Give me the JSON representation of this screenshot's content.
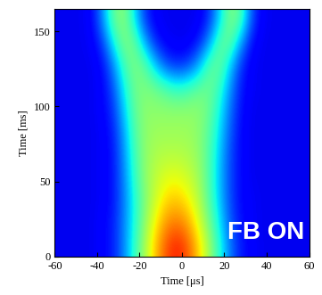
{
  "chart_data": {
    "type": "heatmap",
    "xlabel": "Time [μs]",
    "ylabel": "Time [ms]",
    "annotation": "FB ON",
    "x": [
      -57.5,
      -52.5,
      -47.5,
      -42.5,
      -37.5,
      -32.5,
      -27.5,
      -22.5,
      -17.5,
      -12.5,
      -7.5,
      -2.5,
      2.5,
      7.5,
      12.5,
      17.5,
      22.5,
      27.5,
      32.5,
      37.5,
      42.5,
      47.5,
      52.5,
      57.5
    ],
    "y": [
      7.5,
      22.5,
      37.5,
      52.5,
      67.5,
      82.5,
      97.5,
      112.5,
      127.5,
      142.5,
      157.5
    ],
    "cells": [
      [
        0.1,
        0.1,
        0.1,
        0.1,
        0.12,
        0.15,
        0.25,
        0.4,
        0.55,
        0.7,
        0.82,
        0.88,
        0.82,
        0.7,
        0.55,
        0.4,
        0.25,
        0.15,
        0.12,
        0.1,
        0.1,
        0.1,
        0.1,
        0.1
      ],
      [
        0.1,
        0.1,
        0.1,
        0.1,
        0.12,
        0.15,
        0.25,
        0.38,
        0.52,
        0.65,
        0.75,
        0.78,
        0.74,
        0.63,
        0.5,
        0.36,
        0.22,
        0.14,
        0.11,
        0.1,
        0.1,
        0.1,
        0.1,
        0.1
      ],
      [
        0.1,
        0.1,
        0.1,
        0.1,
        0.11,
        0.14,
        0.24,
        0.38,
        0.5,
        0.6,
        0.68,
        0.7,
        0.66,
        0.58,
        0.46,
        0.33,
        0.2,
        0.13,
        0.11,
        0.1,
        0.1,
        0.1,
        0.1,
        0.1
      ],
      [
        0.1,
        0.1,
        0.1,
        0.1,
        0.11,
        0.14,
        0.25,
        0.4,
        0.52,
        0.58,
        0.62,
        0.63,
        0.6,
        0.55,
        0.45,
        0.32,
        0.2,
        0.13,
        0.1,
        0.1,
        0.1,
        0.1,
        0.1,
        0.1
      ],
      [
        0.1,
        0.1,
        0.1,
        0.1,
        0.11,
        0.14,
        0.26,
        0.42,
        0.52,
        0.56,
        0.57,
        0.57,
        0.56,
        0.53,
        0.45,
        0.33,
        0.2,
        0.13,
        0.1,
        0.1,
        0.1,
        0.1,
        0.1,
        0.1
      ],
      [
        0.1,
        0.1,
        0.1,
        0.1,
        0.11,
        0.15,
        0.28,
        0.44,
        0.52,
        0.54,
        0.54,
        0.54,
        0.54,
        0.52,
        0.46,
        0.35,
        0.22,
        0.13,
        0.1,
        0.1,
        0.1,
        0.1,
        0.1,
        0.1
      ],
      [
        0.1,
        0.1,
        0.1,
        0.1,
        0.12,
        0.17,
        0.32,
        0.46,
        0.52,
        0.52,
        0.52,
        0.52,
        0.52,
        0.52,
        0.48,
        0.38,
        0.24,
        0.14,
        0.1,
        0.1,
        0.1,
        0.1,
        0.1,
        0.1
      ],
      [
        0.1,
        0.1,
        0.1,
        0.1,
        0.12,
        0.2,
        0.36,
        0.48,
        0.5,
        0.48,
        0.44,
        0.4,
        0.42,
        0.46,
        0.48,
        0.42,
        0.28,
        0.15,
        0.11,
        0.1,
        0.1,
        0.1,
        0.1,
        0.1
      ],
      [
        0.1,
        0.1,
        0.1,
        0.1,
        0.13,
        0.25,
        0.42,
        0.5,
        0.46,
        0.32,
        0.2,
        0.16,
        0.18,
        0.28,
        0.44,
        0.48,
        0.34,
        0.18,
        0.11,
        0.1,
        0.1,
        0.1,
        0.1,
        0.1
      ],
      [
        0.1,
        0.1,
        0.1,
        0.11,
        0.18,
        0.36,
        0.5,
        0.48,
        0.3,
        0.16,
        0.11,
        0.1,
        0.1,
        0.14,
        0.26,
        0.45,
        0.48,
        0.3,
        0.14,
        0.1,
        0.1,
        0.1,
        0.1,
        0.1
      ],
      [
        0.1,
        0.1,
        0.1,
        0.12,
        0.26,
        0.46,
        0.52,
        0.36,
        0.18,
        0.11,
        0.1,
        0.1,
        0.1,
        0.1,
        0.16,
        0.32,
        0.5,
        0.46,
        0.22,
        0.11,
        0.1,
        0.1,
        0.1,
        0.1
      ]
    ],
    "clim": [
      0,
      1
    ],
    "xlim": [
      -60,
      60
    ],
    "xticks": [
      -60,
      -40,
      -20,
      0,
      20,
      40,
      60
    ],
    "ylim": [
      0,
      165
    ],
    "yticks": [
      0,
      50,
      100,
      150
    ]
  }
}
